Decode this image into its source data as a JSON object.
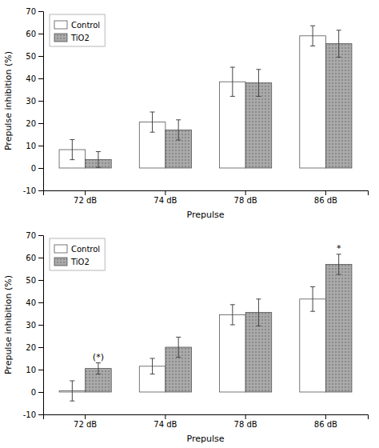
{
  "chart_data": [
    {
      "type": "bar",
      "categories": [
        "72 dB",
        "74 dB",
        "78 dB",
        "86 dB"
      ],
      "series": [
        {
          "name": "Control",
          "color": "#ffffff",
          "values": [
            8.2,
            20.5,
            38.5,
            59.0
          ],
          "errors": [
            4.5,
            4.5,
            6.5,
            4.5
          ]
        },
        {
          "name": "TiO2",
          "color": "#aaaaaa",
          "values": [
            3.8,
            17.0,
            38.0,
            55.5
          ],
          "errors": [
            3.5,
            4.5,
            6.0,
            6.0
          ]
        }
      ],
      "xlabel": "Prepulse",
      "ylabel": "Prepulse inhibition (%)",
      "ylim": [
        -10,
        70
      ],
      "yticks": [
        -10,
        0,
        10,
        20,
        30,
        40,
        50,
        60,
        70
      ],
      "legend": "upper left"
    },
    {
      "type": "bar",
      "categories": [
        "72 dB",
        "74 dB",
        "78 dB",
        "86 dB"
      ],
      "series": [
        {
          "name": "Control",
          "color": "#ffffff",
          "values": [
            0.5,
            11.5,
            34.5,
            41.5
          ],
          "errors": [
            4.5,
            3.5,
            4.5,
            5.5
          ]
        },
        {
          "name": "TiO2",
          "color": "#aaaaaa",
          "values": [
            10.5,
            20.0,
            35.5,
            57.0
          ],
          "errors": [
            2.5,
            4.5,
            6.0,
            4.5
          ],
          "annotations": [
            "(*)",
            null,
            null,
            "*"
          ]
        }
      ],
      "xlabel": "Prepulse",
      "ylabel": "Prepulse inhibition (%)",
      "ylim": [
        -10,
        70
      ],
      "yticks": [
        -10,
        0,
        10,
        20,
        30,
        40,
        50,
        60,
        70
      ],
      "legend": "upper left"
    }
  ]
}
